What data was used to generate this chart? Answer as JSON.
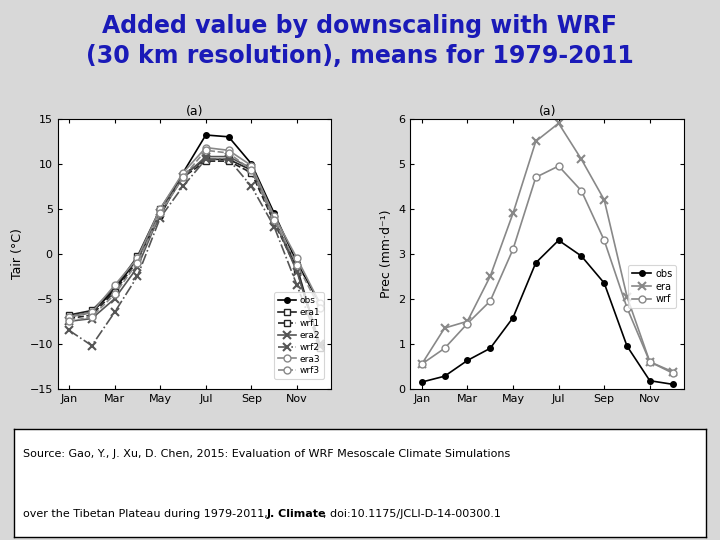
{
  "title_line1": "Added value by downscaling with WRF",
  "title_line2": "(30 km resolution), means for 1979-2011",
  "title_color": "#1a1ab8",
  "title_fontsize": 17,
  "months_labels": [
    "Jan",
    "Mar",
    "May",
    "Jul",
    "Sep",
    "Nov"
  ],
  "months_x": [
    1,
    3,
    5,
    7,
    9,
    11
  ],
  "x_vals": [
    1,
    2,
    3,
    4,
    5,
    6,
    7,
    8,
    9,
    10,
    11,
    12
  ],
  "left_subtitle": "(a)",
  "left_ylabel": "Tair (°C)",
  "left_ylim": [
    -15,
    15
  ],
  "left_yticks": [
    -15,
    -10,
    -5,
    0,
    5,
    10,
    15
  ],
  "obs_temp": [
    -7.0,
    -6.5,
    -4.0,
    -0.5,
    4.2,
    9.0,
    13.2,
    13.0,
    10.0,
    4.5,
    -1.0,
    -5.5
  ],
  "era1_temp": [
    -6.8,
    -6.3,
    -3.8,
    -0.3,
    5.0,
    8.8,
    10.5,
    10.5,
    9.3,
    3.8,
    -1.5,
    -10.2
  ],
  "wrf1_temp": [
    -7.2,
    -6.8,
    -4.2,
    -0.8,
    4.8,
    8.5,
    10.3,
    10.3,
    9.0,
    3.5,
    -1.8,
    -10.5
  ],
  "era2_temp": [
    -7.5,
    -7.2,
    -5.0,
    -1.5,
    4.5,
    8.5,
    10.8,
    10.8,
    9.5,
    3.8,
    -2.0,
    -10.0
  ],
  "wrf2_temp": [
    -8.5,
    -10.2,
    -6.5,
    -2.5,
    4.0,
    7.5,
    10.5,
    10.5,
    7.5,
    3.0,
    -3.5,
    -10.2
  ],
  "era3_temp": [
    -7.0,
    -6.5,
    -3.5,
    -0.5,
    5.0,
    9.0,
    11.8,
    11.5,
    9.8,
    4.2,
    -0.5,
    -5.5
  ],
  "wrf3_temp": [
    -7.5,
    -7.0,
    -4.5,
    -1.0,
    4.5,
    8.5,
    11.5,
    11.2,
    9.3,
    3.8,
    -1.2,
    -6.0
  ],
  "right_subtitle": "(a)",
  "right_ylabel": "Prec (mm·d⁻¹)",
  "right_ylim": [
    0.0,
    6.0
  ],
  "right_yticks": [
    0.0,
    1.0,
    2.0,
    3.0,
    4.0,
    5.0,
    6.0
  ],
  "obs_prec": [
    0.15,
    0.28,
    0.63,
    0.9,
    1.58,
    2.8,
    3.3,
    2.95,
    2.35,
    0.95,
    0.18,
    0.1
  ],
  "era_prec": [
    0.55,
    1.35,
    1.5,
    2.5,
    3.9,
    5.5,
    5.9,
    5.1,
    4.2,
    2.05,
    0.6,
    0.38
  ],
  "wrf_prec": [
    0.55,
    0.9,
    1.45,
    1.95,
    3.1,
    4.7,
    4.95,
    4.4,
    3.3,
    1.8,
    0.6,
    0.35
  ],
  "source_line1": "Source: Gao, Y., J. Xu, D. Chen, 2015: Evaluation of WRF Mesoscale Climate Simulations",
  "source_line2_plain1": "over the Tibetan Plateau during 1979-2011, ",
  "source_line2_bold": "J. Climate",
  "source_line2_plain2": ", doi:10.1175/JCLI-D-14-00300.1",
  "bg_color": "#d8d8d8",
  "plot_bg": "#ffffff"
}
